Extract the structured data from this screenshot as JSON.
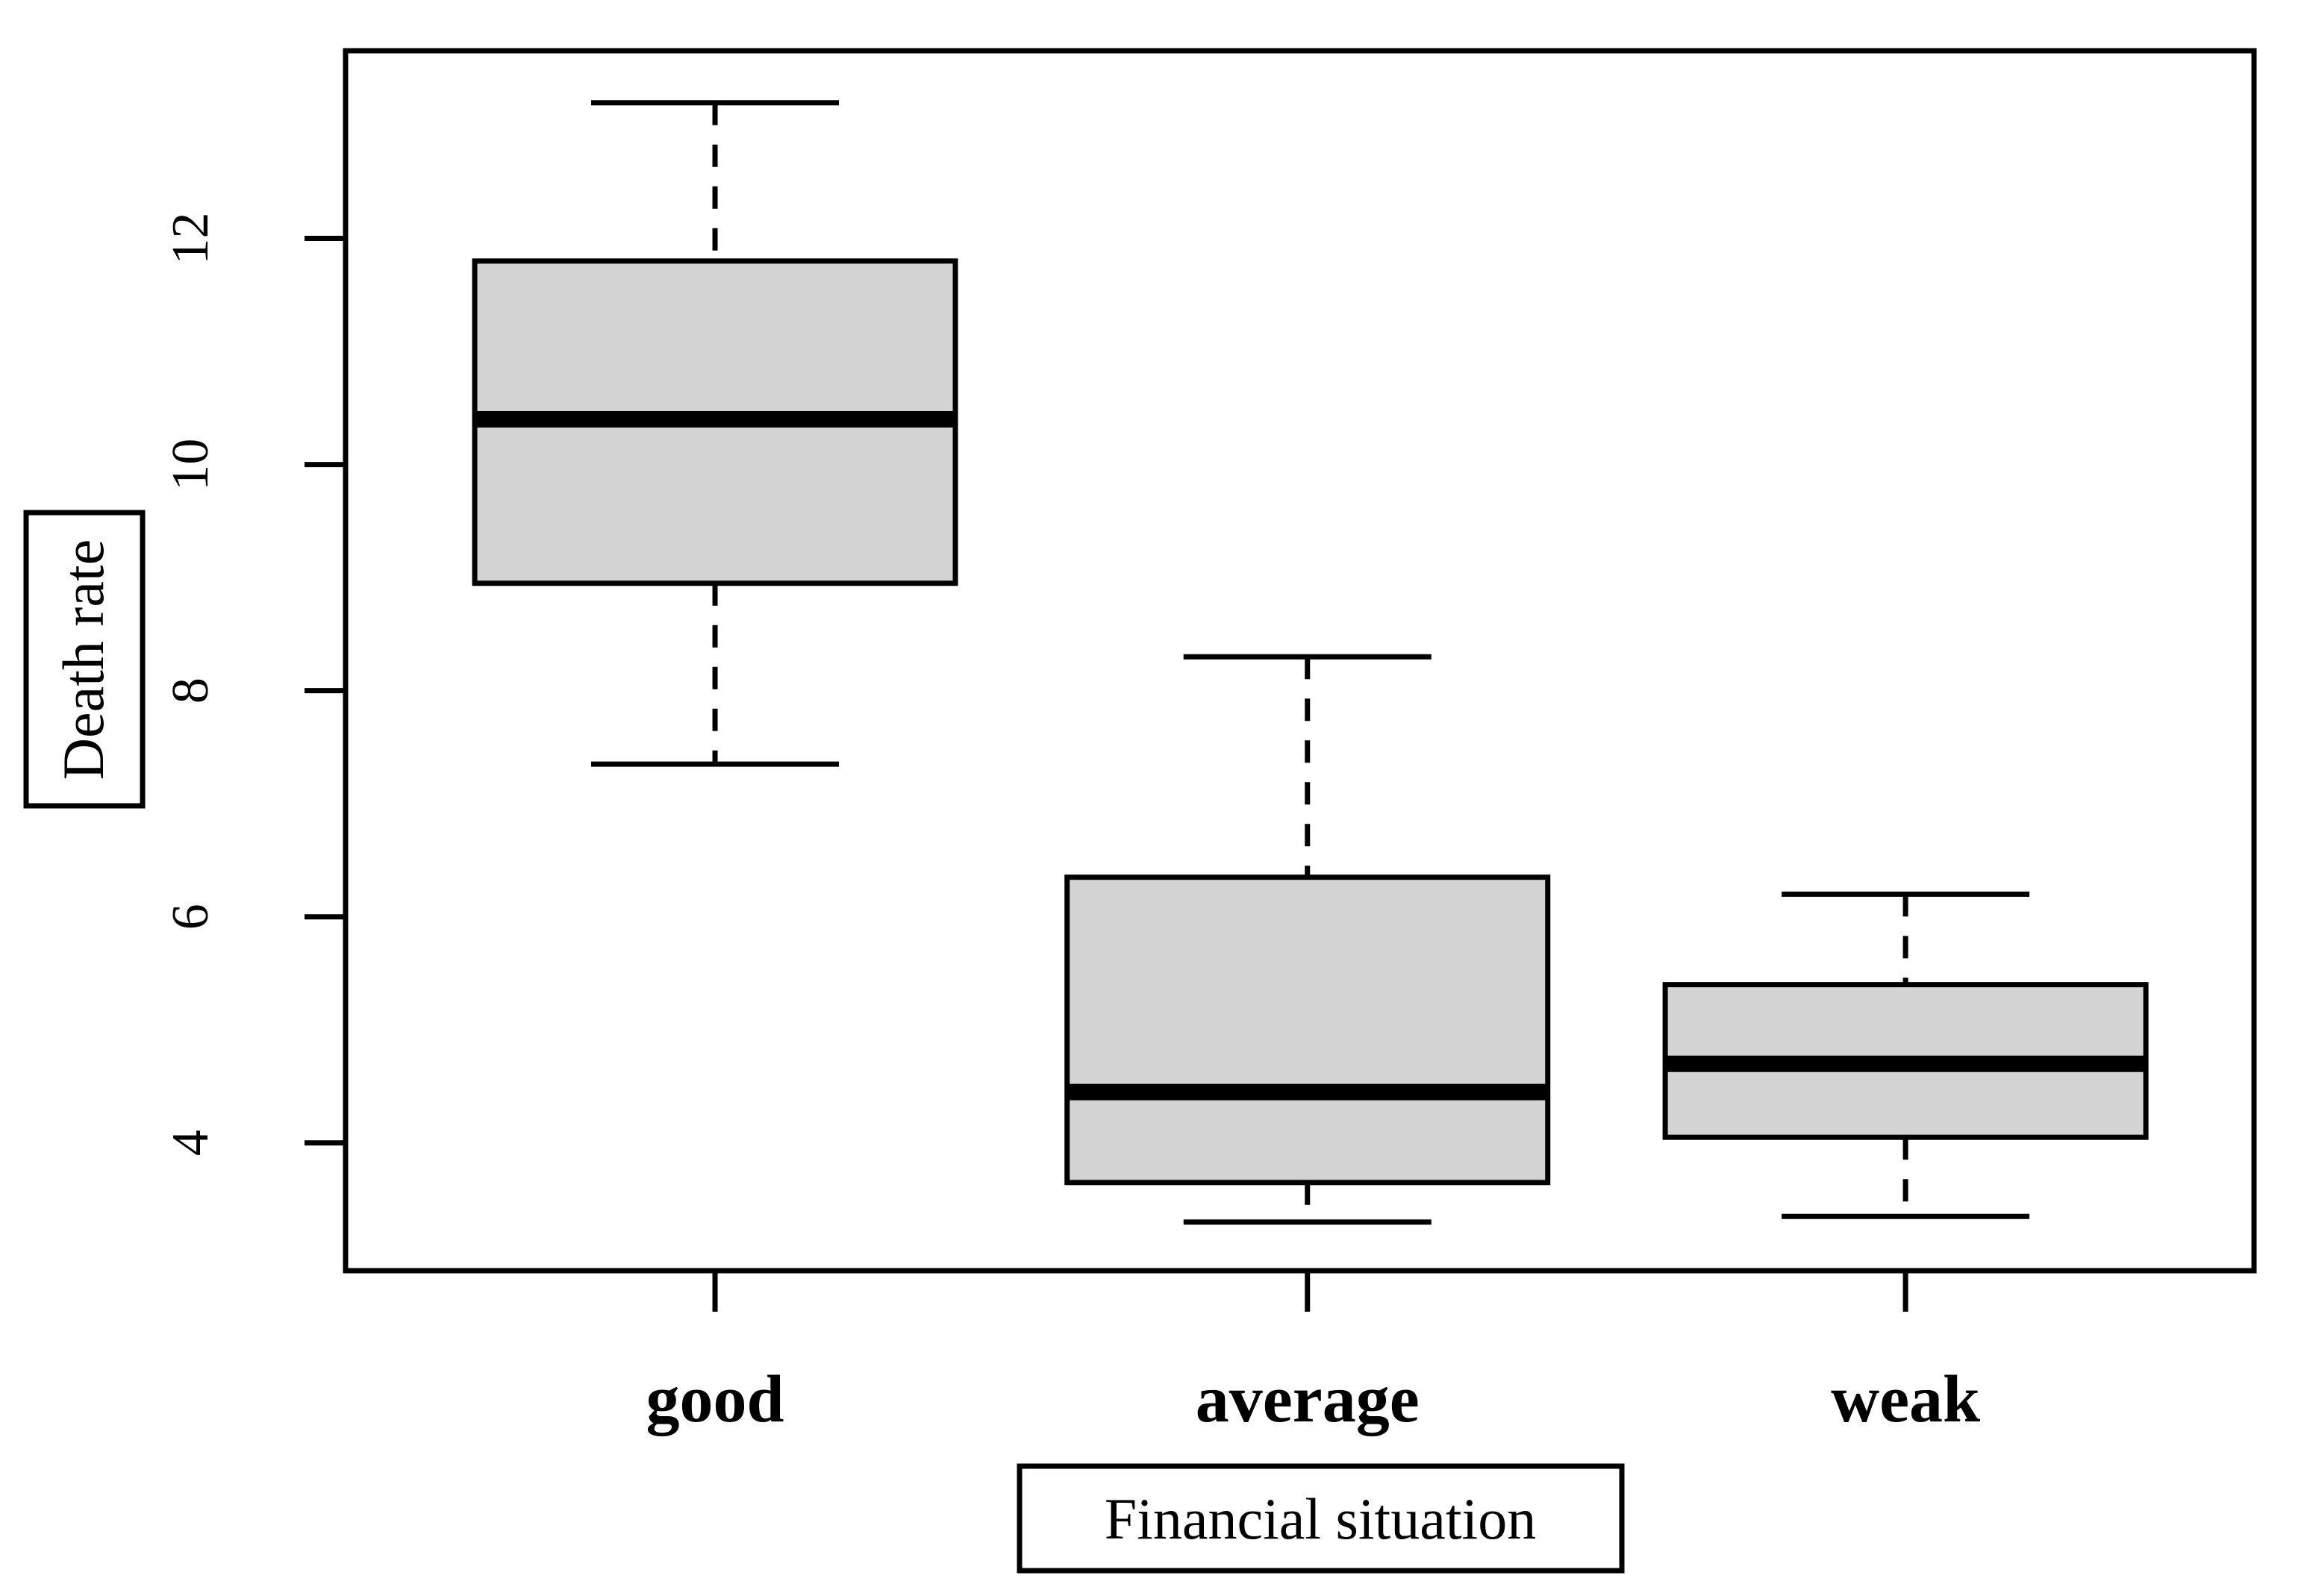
{
  "figure": {
    "background": "#ffffff",
    "border_color": "#000000"
  },
  "chart_data": {
    "type": "boxplot",
    "title": "",
    "xlabel": "Financial situation",
    "ylabel": "Death rate",
    "categories": [
      "good",
      "average",
      "weak"
    ],
    "series": [
      {
        "name": "good",
        "min": 7.35,
        "q1": 8.95,
        "median": 10.4,
        "q3": 11.8,
        "max": 13.2
      },
      {
        "name": "average",
        "min": 3.3,
        "q1": 3.65,
        "median": 4.45,
        "q3": 6.35,
        "max": 8.3
      },
      {
        "name": "weak",
        "min": 3.35,
        "q1": 4.05,
        "median": 4.7,
        "q3": 5.4,
        "max": 6.2
      }
    ],
    "y_ticks": [
      4,
      6,
      8,
      10,
      12
    ],
    "ylim": [
      2.87,
      13.66
    ],
    "grid": false,
    "legend": null,
    "box_fill": "#d3d3d3",
    "line_color": "#000000",
    "background": "#ffffff"
  }
}
